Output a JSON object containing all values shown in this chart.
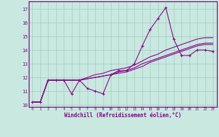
{
  "xlabel": "Windchill (Refroidissement éolien,°C)",
  "bg_color": "#c8e8e0",
  "grid_color": "#a0ccbc",
  "line_color": "#880088",
  "spine_color": "#660066",
  "xlim": [
    -0.5,
    23.5
  ],
  "ylim": [
    9.85,
    17.55
  ],
  "xticks": [
    0,
    1,
    2,
    3,
    4,
    5,
    6,
    7,
    8,
    9,
    10,
    11,
    12,
    13,
    14,
    15,
    16,
    17,
    18,
    19,
    20,
    21,
    22,
    23
  ],
  "yticks": [
    10,
    11,
    12,
    13,
    14,
    15,
    16,
    17
  ],
  "main_series": [
    10.2,
    10.2,
    11.8,
    11.8,
    11.8,
    10.8,
    11.8,
    11.2,
    11.0,
    10.8,
    12.2,
    12.5,
    12.5,
    13.0,
    14.3,
    15.5,
    16.3,
    17.1,
    14.8,
    13.6,
    13.6,
    14.0,
    14.0,
    13.9
  ],
  "trend1": [
    10.2,
    10.2,
    11.8,
    11.8,
    11.8,
    11.8,
    11.8,
    12.0,
    12.2,
    12.3,
    12.5,
    12.6,
    12.7,
    12.9,
    13.2,
    13.5,
    13.7,
    14.0,
    14.2,
    14.4,
    14.6,
    14.8,
    14.9,
    14.9
  ],
  "trend2": [
    10.2,
    10.2,
    11.8,
    11.8,
    11.8,
    11.8,
    11.8,
    11.9,
    12.0,
    12.1,
    12.2,
    12.4,
    12.5,
    12.7,
    13.0,
    13.2,
    13.4,
    13.6,
    13.8,
    14.0,
    14.2,
    14.4,
    14.5,
    14.5
  ],
  "trend3": [
    10.2,
    10.2,
    11.8,
    11.8,
    11.8,
    11.8,
    11.8,
    11.9,
    12.0,
    12.1,
    12.2,
    12.3,
    12.4,
    12.6,
    12.8,
    13.1,
    13.3,
    13.5,
    13.7,
    13.9,
    14.1,
    14.3,
    14.4,
    14.4
  ]
}
